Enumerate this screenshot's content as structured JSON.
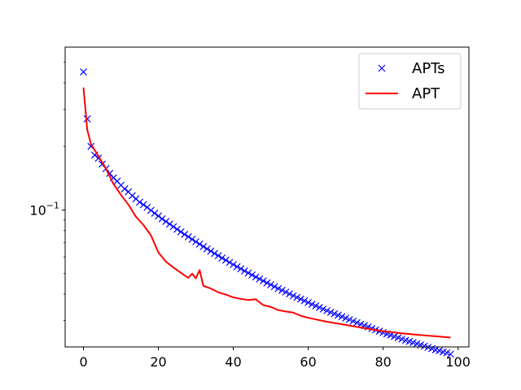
{
  "chart_data": {
    "type": "line",
    "yscale": "log",
    "xlim": [
      -4.9,
      102.9
    ],
    "ylim": [
      0.0225,
      0.59
    ],
    "grid": false,
    "legend_position": "top-right",
    "x_ticks": [
      {
        "value": 0,
        "label": "0"
      },
      {
        "value": 20,
        "label": "20"
      },
      {
        "value": 40,
        "label": "40"
      },
      {
        "value": 60,
        "label": "60"
      },
      {
        "value": 80,
        "label": "80"
      },
      {
        "value": 100,
        "label": "100"
      }
    ],
    "y_ticks": [
      {
        "value": 0.1,
        "label": "10",
        "exponent": "−1"
      }
    ],
    "series": [
      {
        "name": "APTs",
        "style": "markers",
        "marker": "x",
        "color": "#0000ff",
        "x": [
          0,
          1,
          2,
          3,
          4,
          5,
          6,
          7,
          8,
          9,
          10,
          11,
          12,
          13,
          14,
          15,
          16,
          17,
          18,
          19,
          20,
          21,
          22,
          23,
          24,
          25,
          26,
          27,
          28,
          29,
          30,
          31,
          32,
          33,
          34,
          35,
          36,
          37,
          38,
          39,
          40,
          41,
          42,
          43,
          44,
          45,
          46,
          47,
          48,
          49,
          50,
          51,
          52,
          53,
          54,
          55,
          56,
          57,
          58,
          59,
          60,
          61,
          62,
          63,
          64,
          65,
          66,
          67,
          68,
          69,
          70,
          71,
          72,
          73,
          74,
          75,
          76,
          77,
          78,
          79,
          80,
          81,
          82,
          83,
          84,
          85,
          86,
          87,
          88,
          89,
          90,
          91,
          92,
          93,
          94,
          95,
          96,
          97,
          98
        ],
        "y": [
          0.45,
          0.27,
          0.2,
          0.182,
          0.176,
          0.165,
          0.157,
          0.149,
          0.142,
          0.137,
          0.131,
          0.126,
          0.122,
          0.117,
          0.113,
          0.109,
          0.106,
          0.103,
          0.0996,
          0.0966,
          0.0937,
          0.0909,
          0.0883,
          0.0858,
          0.0834,
          0.0811,
          0.0789,
          0.0767,
          0.0747,
          0.0727,
          0.0708,
          0.069,
          0.0672,
          0.0655,
          0.0639,
          0.0623,
          0.0608,
          0.0593,
          0.0579,
          0.0565,
          0.0552,
          0.0539,
          0.0527,
          0.0515,
          0.0504,
          0.0493,
          0.0482,
          0.0472,
          0.0462,
          0.0452,
          0.0443,
          0.0434,
          0.0425,
          0.0417,
          0.0409,
          0.0401,
          0.0393,
          0.0386,
          0.0379,
          0.0372,
          0.0365,
          0.0358,
          0.0352,
          0.0346,
          0.034,
          0.0334,
          0.0328,
          0.0323,
          0.0318,
          0.0313,
          0.0308,
          0.0303,
          0.0298,
          0.0293,
          0.0288,
          0.0284,
          0.028,
          0.0275,
          0.0271,
          0.0267,
          0.0263,
          0.0259,
          0.0256,
          0.0252,
          0.0249,
          0.0245,
          0.0242,
          0.0239,
          0.0236,
          0.0233,
          0.023,
          0.0227,
          0.0224,
          0.0221,
          0.0218,
          0.0216,
          0.0213,
          0.0211,
          0.0208
        ]
      },
      {
        "name": "APT",
        "style": "line",
        "color": "#ff0000",
        "x": [
          0,
          1,
          2,
          3,
          4,
          6,
          8,
          10,
          12,
          14,
          16,
          18,
          20,
          22,
          24,
          26,
          27,
          28,
          29,
          30,
          31,
          32,
          34,
          36,
          38,
          40,
          42,
          44,
          46,
          48,
          50,
          52,
          54,
          56,
          58,
          60,
          65,
          70,
          75,
          80,
          85,
          90,
          95,
          98
        ],
        "y": [
          0.38,
          0.24,
          0.205,
          0.192,
          0.18,
          0.157,
          0.133,
          0.118,
          0.106,
          0.093,
          0.085,
          0.076,
          0.063,
          0.057,
          0.0535,
          0.0505,
          0.049,
          0.0478,
          0.05,
          0.0475,
          0.052,
          0.0438,
          0.0425,
          0.0408,
          0.0398,
          0.0386,
          0.038,
          0.0375,
          0.0378,
          0.0355,
          0.0348,
          0.0336,
          0.0331,
          0.0327,
          0.0316,
          0.0309,
          0.0296,
          0.0286,
          0.0276,
          0.0267,
          0.0261,
          0.0256,
          0.0252,
          0.0249
        ]
      }
    ]
  }
}
